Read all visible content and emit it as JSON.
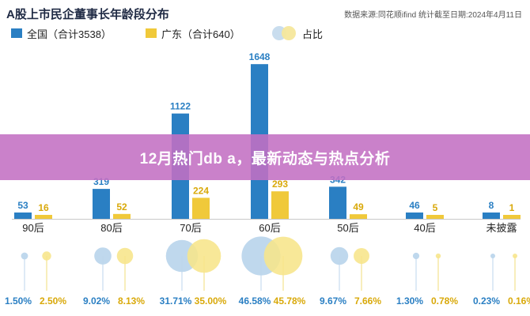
{
  "chart_data": {
    "type": "bar",
    "title": "A股上市民企董事长年龄段分布",
    "source": "数据来源:同花顺ifind   统计截至日期:2024年4月11日",
    "categories": [
      "90后",
      "80后",
      "70后",
      "60后",
      "50后",
      "40后",
      "未披露"
    ],
    "series": [
      {
        "name": "全国（合计3538）",
        "color": "#2a7fc3",
        "values": [
          53,
          319,
          1122,
          1648,
          342,
          46,
          8
        ]
      },
      {
        "name": "广东（合计640）",
        "color": "#f0c93a",
        "values": [
          16,
          52,
          224,
          293,
          49,
          5,
          1
        ]
      }
    ],
    "share_legend": "占比",
    "share": {
      "national": [
        "1.50%",
        "9.02%",
        "31.71%",
        "46.58%",
        "9.67%",
        "1.30%",
        "0.23%"
      ],
      "guangdong": [
        "2.50%",
        "8.13%",
        "35.00%",
        "45.78%",
        "7.66%",
        "0.78%",
        "0.16%"
      ]
    },
    "share_colors": {
      "national": "#bcd6ec",
      "guangdong": "#f7e58a"
    },
    "ylim": [
      0,
      1700
    ]
  },
  "banner": {
    "text": "12月热门db a，最新动态与热点分析"
  }
}
